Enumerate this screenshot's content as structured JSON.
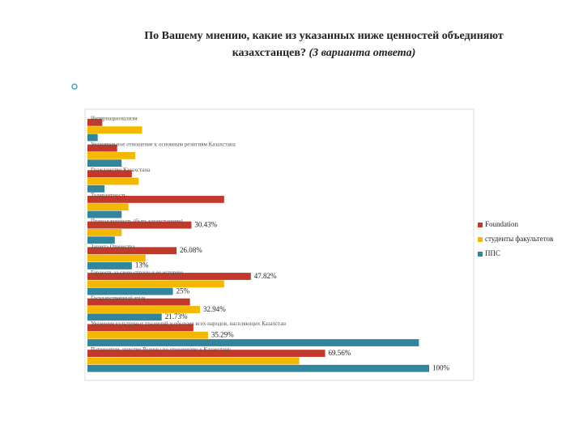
{
  "chart_data": {
    "type": "bar",
    "orientation": "horizontal",
    "title": "По Вашему мнению, какие из указанных ниже ценностей объединяют казахстанцев?",
    "subtitle": "(3 варианта ответа)",
    "categories": [
      "Интернационализм",
      "Уважительное отношение к основным религиям Казахстана",
      "Гражданство Казахстана",
      "Толерантность",
      "Принадлежность (быть казахстанцем)",
      "Защита Отечества",
      "Гордость за свою страну и ее историю",
      "Государственный язык",
      "Уважение культурных традиций и обычаев всех народов, населяющих Казахстан",
      "Патриотизм, чувство Родины по отношению к Казахстану"
    ],
    "series": [
      {
        "name": "Foundation",
        "color": "#c0392b",
        "values": [
          4.35,
          8.7,
          13,
          40,
          30.43,
          26.08,
          47.82,
          30,
          31,
          69.56
        ],
        "value_labels": [
          null,
          null,
          null,
          null,
          "30.43%",
          "26.08%",
          "47.82%",
          null,
          null,
          "69.56%"
        ]
      },
      {
        "name": "студенты факультетов",
        "color": "#f5b800",
        "values": [
          16,
          14,
          15,
          12,
          10,
          17,
          40,
          32.94,
          35.29,
          62
        ],
        "value_labels": [
          null,
          null,
          null,
          null,
          null,
          null,
          null,
          "32.94%",
          "35.29%",
          null
        ]
      },
      {
        "name": "ППС",
        "color": "#31859c",
        "values": [
          3,
          10,
          5,
          10,
          8,
          13,
          25,
          21.73,
          97,
          100
        ],
        "value_labels": [
          null,
          null,
          null,
          null,
          null,
          "13%",
          "25%",
          "21.73%",
          null,
          "100%"
        ]
      }
    ],
    "xlim": [
      0,
      100
    ],
    "legend": "right"
  }
}
